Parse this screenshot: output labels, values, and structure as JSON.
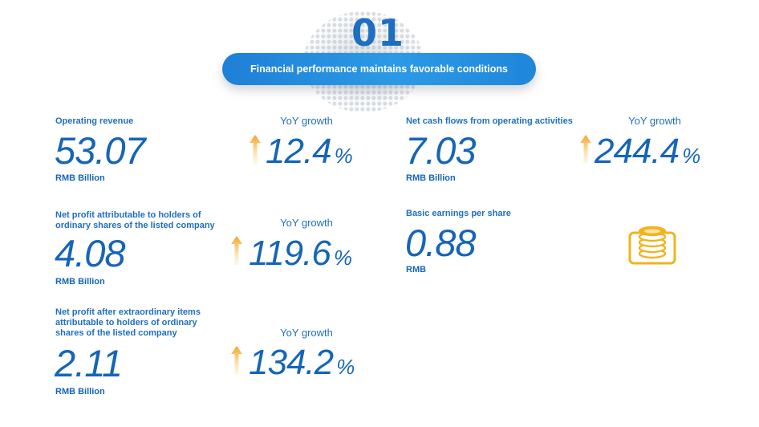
{
  "header": {
    "number": "01",
    "title": "Financial performance maintains favorable conditions"
  },
  "metrics": {
    "revenue": {
      "label": "Operating revenue",
      "value": "53.07",
      "unit": "RMB Billion",
      "yoy_label": "YoY growth",
      "yoy_value": "12.4",
      "yoy_unit": "%"
    },
    "net_profit": {
      "label": "Net profit attributable to holders of ordinary shares of the listed company",
      "value": "4.08",
      "unit": "RMB Billion",
      "yoy_label": "YoY growth",
      "yoy_value": "119.6",
      "yoy_unit": "%"
    },
    "net_profit_after": {
      "label": "Net profit after extraordinary items attributable to holders of ordinary shares of the listed company",
      "value": "2.11",
      "unit": "RMB Billion",
      "yoy_label": "YoY growth",
      "yoy_value": "134.2",
      "yoy_unit": "%"
    },
    "cash_flow": {
      "label": "Net cash flows from operating activities",
      "value": "7.03",
      "unit": "RMB Billion",
      "yoy_label": "YoY growth",
      "yoy_value": "244.4",
      "yoy_unit": "%"
    },
    "eps": {
      "label": "Basic earnings per share",
      "value": "0.88",
      "unit": "RMB"
    }
  },
  "colors": {
    "text_blue": "#1565b8",
    "pill_blue": "#1e7fd6",
    "arrow_orange": "#f4a020",
    "coin_gold": "#f2b31e"
  },
  "icons": {
    "arrow": "up-arrow-icon",
    "coins": "coins-icon"
  }
}
